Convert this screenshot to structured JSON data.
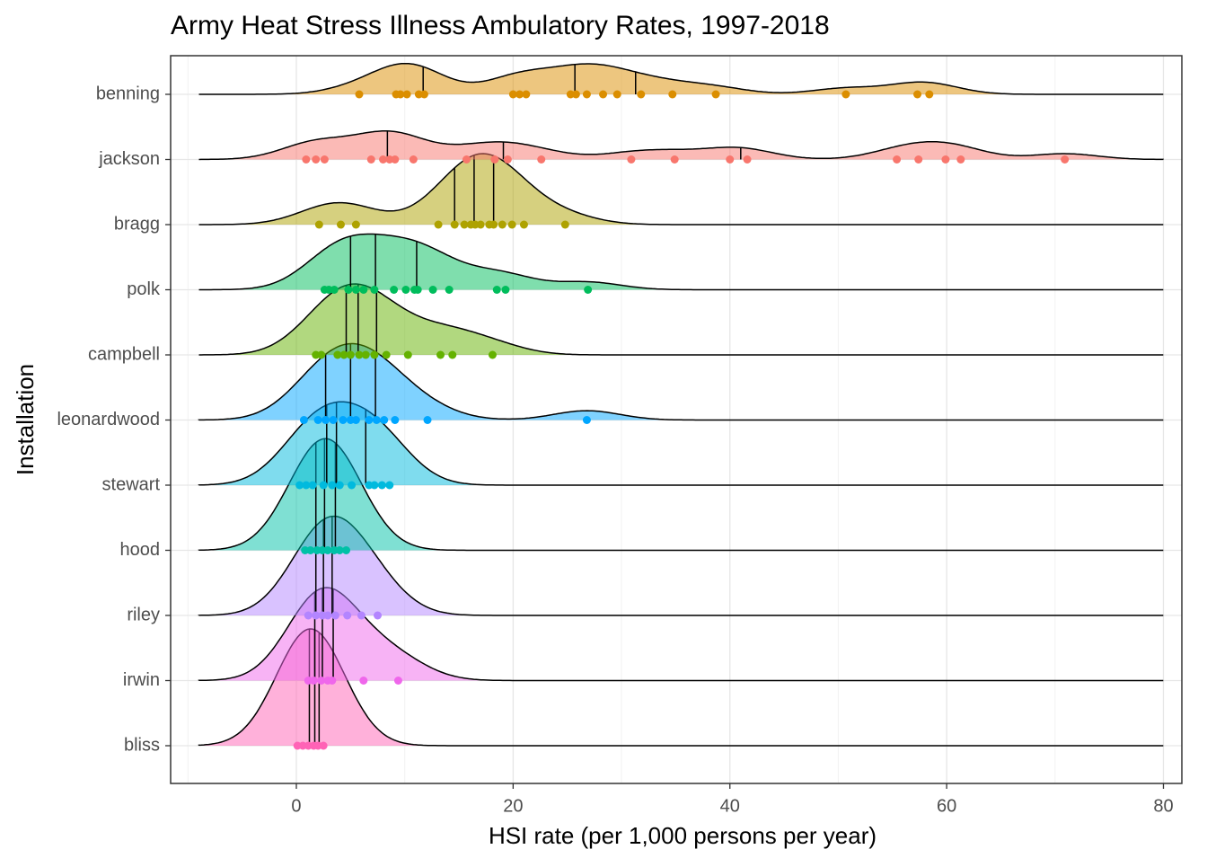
{
  "chart_data": {
    "type": "ridgeline",
    "title": "Army Heat Stress Illness Ambulatory Rates, 1997-2018",
    "x_label": "HSI rate (per 1,000 persons per year)",
    "y_label": "Installation",
    "xlim": [
      -11.6,
      81.7
    ],
    "xticks": [
      0,
      20,
      40,
      60,
      80
    ],
    "grid": true,
    "series": [
      {
        "name": "benning",
        "color": "#DB8E00",
        "values": [
          5.8,
          9.2,
          9.6,
          10.2,
          11.3,
          11.8,
          20,
          20.6,
          21.2,
          25.3,
          25.8,
          26.8,
          28.3,
          29.6,
          31.8,
          34.7,
          38.7,
          50.7,
          57.3,
          58.4
        ],
        "quantiles": [
          11.7,
          25.7,
          31.3
        ]
      },
      {
        "name": "jackson",
        "color": "#F8766D",
        "values": [
          0.9,
          1.8,
          2.6,
          6.9,
          8.0,
          8.6,
          9.1,
          10.8,
          15.7,
          18.3,
          19.5,
          22.6,
          30.9,
          34.9,
          40.0,
          41.6,
          55.4,
          57.4,
          59.9,
          61.3,
          70.9
        ],
        "quantiles": [
          8.4,
          19.1,
          41
        ]
      },
      {
        "name": "bragg",
        "color": "#AEA200",
        "values": [
          2.1,
          4.1,
          5.5,
          13.1,
          14.6,
          15.5,
          16.1,
          16.5,
          17.0,
          17.8,
          18.2,
          19.0,
          19.9,
          21.0,
          24.8
        ],
        "quantiles": [
          14.6,
          16.4,
          18.2
        ]
      },
      {
        "name": "polk",
        "color": "#00BD5C",
        "values": [
          2.6,
          3.0,
          3.5,
          4.8,
          5.5,
          6.2,
          7.2,
          9.0,
          10.1,
          10.9,
          11.2,
          12.6,
          14.1,
          18.5,
          19.3,
          26.9
        ],
        "quantiles": [
          5.0,
          7.3,
          11.1
        ]
      },
      {
        "name": "campbell",
        "color": "#64B200",
        "values": [
          1.8,
          2.3,
          3.8,
          4.4,
          5.0,
          5.8,
          6.4,
          7.2,
          8.3,
          10.3,
          13.3,
          14.4,
          18.1
        ],
        "quantiles": [
          4.6,
          5.7,
          7.4
        ]
      },
      {
        "name": "leonardwood",
        "color": "#00A6FF",
        "values": [
          0.7,
          2.0,
          2.7,
          3.4,
          4.3,
          5.0,
          5.5,
          6.7,
          7.4,
          8.1,
          9.1,
          12.1,
          26.8
        ],
        "quantiles": [
          2.7,
          5.0,
          7.3
        ]
      },
      {
        "name": "stewart",
        "color": "#00BADE",
        "values": [
          0.3,
          0.9,
          1.5,
          2.5,
          3.3,
          4.0,
          5.1,
          6.7,
          7.2,
          7.9,
          8.6
        ],
        "quantiles": [
          2.8,
          3.7,
          6.4
        ]
      },
      {
        "name": "hood",
        "color": "#00C1A7",
        "values": [
          0.8,
          1.3,
          1.9,
          2.4,
          2.9,
          3.5,
          4.0,
          4.6
        ],
        "quantiles": [
          1.8,
          2.6,
          3.6
        ]
      },
      {
        "name": "riley",
        "color": "#B385FF",
        "values": [
          1.1,
          1.8,
          2.4,
          2.9,
          3.6,
          4.7,
          6.0,
          7.5
        ],
        "quantiles": [
          1.8,
          2.5,
          3.3
        ]
      },
      {
        "name": "irwin",
        "color": "#EF67EB",
        "values": [
          1.1,
          1.6,
          2.3,
          2.9,
          3.3,
          6.2,
          9.4
        ],
        "quantiles": [
          1.7,
          2.4,
          3.4
        ]
      },
      {
        "name": "bliss",
        "color": "#FF63B6",
        "values": [
          0.1,
          0.6,
          1.1,
          1.6,
          2.0,
          2.5
        ],
        "quantiles": [
          1.2,
          1.7,
          2.1
        ]
      }
    ]
  }
}
